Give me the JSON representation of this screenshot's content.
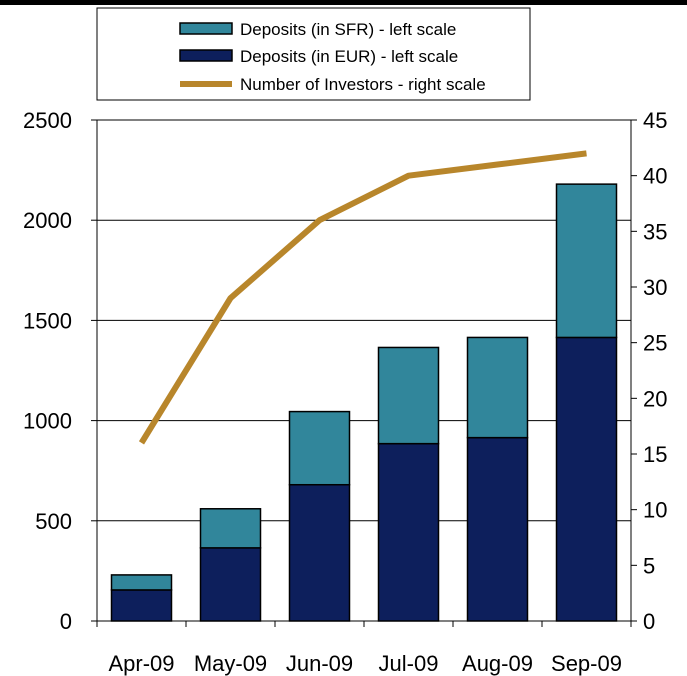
{
  "chart_data": {
    "type": "bar",
    "stacked": true,
    "categories": [
      "Apr-09",
      "May-09",
      "Jun-09",
      "Jul-09",
      "Aug-09",
      "Sep-09"
    ],
    "series": [
      {
        "name": "Deposits (in EUR) - left scale",
        "axis": "left",
        "kind": "bar",
        "color": "#0d1f5c",
        "values": [
          155,
          365,
          680,
          885,
          915,
          1415
        ]
      },
      {
        "name": "Deposits (in SFR) - left scale",
        "axis": "left",
        "kind": "bar",
        "color": "#31869b",
        "values": [
          75,
          195,
          365,
          480,
          500,
          765
        ]
      },
      {
        "name": "Number of Investors - right scale",
        "axis": "right",
        "kind": "line",
        "color": "#b8862b",
        "values": [
          16,
          29,
          36,
          40,
          41,
          42
        ]
      }
    ],
    "legend_order": [
      1,
      0,
      2
    ],
    "left_axis": {
      "ylim": [
        0,
        2500
      ],
      "ticks": [
        0,
        500,
        1000,
        1500,
        2000,
        2500
      ]
    },
    "right_axis": {
      "ylim": [
        0,
        45
      ],
      "ticks": [
        0,
        5,
        10,
        15,
        20,
        25,
        30,
        35,
        40,
        45
      ]
    },
    "gridlines": true,
    "legend_position": "top"
  }
}
